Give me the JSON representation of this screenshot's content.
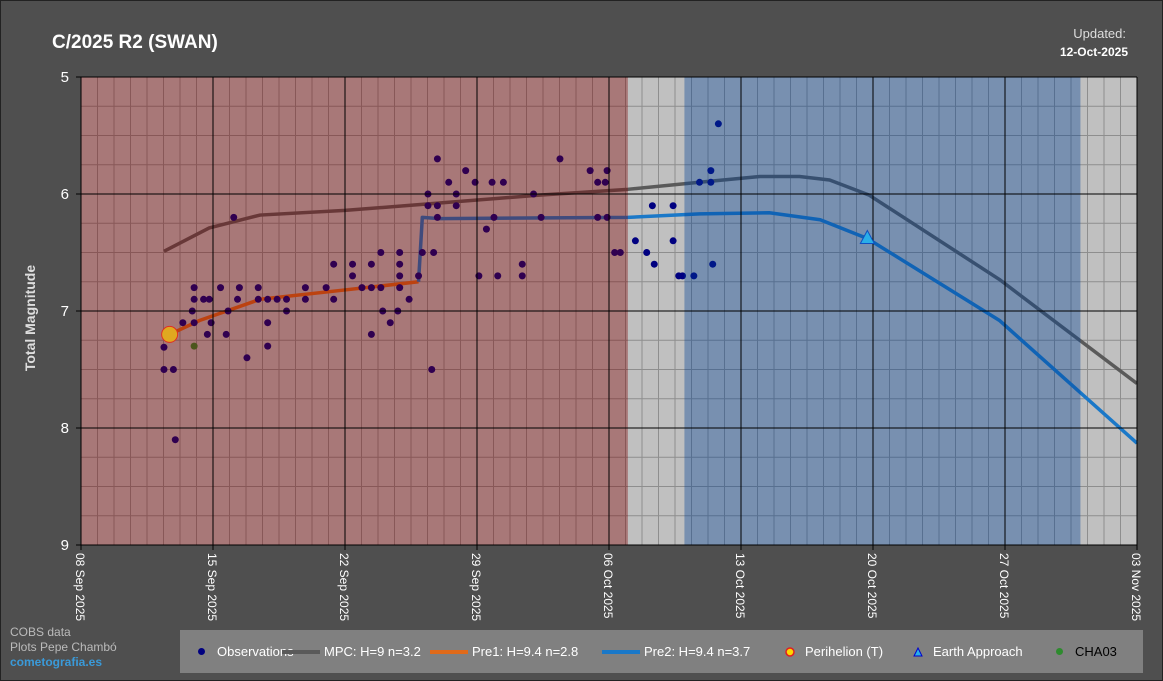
{
  "title": "C/2025 R2 (SWAN)",
  "updated_label": "Updated:",
  "updated_date": "12-Oct-2025",
  "credits": {
    "line1": "COBS data",
    "line2": "Plots Pepe Chambó",
    "site": "cometografia.es"
  },
  "legend": [
    {
      "label": "Observations",
      "color": "#000080"
    },
    {
      "label": "MPC: H=9 n=3.2",
      "color": "#5a5a5a"
    },
    {
      "label": "Pre1: H=9.4 n=2.8",
      "color": "#e06a1a"
    },
    {
      "label": "Pre2: H=9.4 n=3.7",
      "color": "#1a78c8"
    },
    {
      "label": "Perihelion (T)",
      "color": "#ffd700"
    },
    {
      "label": "Earth Approach",
      "color": "#29aee8"
    },
    {
      "label": "CHA03",
      "color": "#2e8b2e"
    }
  ],
  "chart_data": {
    "type": "scatter",
    "title": "C/2025 R2 (SWAN)",
    "ylabel": "Total Magnitude",
    "xlabel": "",
    "x_units": "days since 08 Sep 2025",
    "xlim": [
      0,
      56
    ],
    "ylim": [
      9,
      5
    ],
    "y_inverted": true,
    "grid": true,
    "legend_position": "bottom",
    "x_ticks": [
      {
        "day": 0,
        "label": "08 Sep 2025"
      },
      {
        "day": 7,
        "label": "15 Sep 2025"
      },
      {
        "day": 14,
        "label": "22 Sep 2025"
      },
      {
        "day": 21,
        "label": "29 Sep 2025"
      },
      {
        "day": 28,
        "label": "06 Oct 2025"
      },
      {
        "day": 35,
        "label": "13 Oct 2025"
      },
      {
        "day": 42,
        "label": "20 Oct 2025"
      },
      {
        "day": 49,
        "label": "27 Oct 2025"
      },
      {
        "day": 56,
        "label": "03 Nov 2025"
      }
    ],
    "y_ticks": [
      "5",
      "6",
      "7",
      "8",
      "9"
    ],
    "y_tick_values": [
      5,
      6,
      7,
      8,
      9
    ],
    "regions": [
      {
        "from": 0,
        "to": 29,
        "color": "rgba(128,0,0,0.375)"
      },
      {
        "from": 32,
        "to": 53,
        "color": "rgba(0,64,149,0.375)"
      }
    ],
    "series": [
      {
        "name": "MPC: H=9 n=3.2",
        "kind": "line",
        "color": "#5a5a5a",
        "x": [
          4.4,
          6.8,
          9.5,
          14,
          18,
          24.3,
          29,
          32.8,
          36,
          38.1,
          39.7,
          41.8,
          48.7,
          56
        ],
        "y": [
          6.49,
          6.29,
          6.18,
          6.14,
          6.09,
          6.01,
          5.96,
          5.9,
          5.85,
          5.85,
          5.88,
          6.01,
          6.73,
          7.62
        ]
      },
      {
        "name": "Pre1: H=9.4 n=2.8",
        "kind": "line",
        "color": "#e06a1a",
        "x": [
          4.7,
          6.3,
          9.5,
          14,
          17.9
        ],
        "y": [
          7.2,
          7.08,
          6.9,
          6.82,
          6.75
        ]
      },
      {
        "name": "Pre2: H=9.4 n=3.7",
        "kind": "line",
        "color": "#1a78c8",
        "x": [
          17.9,
          18.1,
          19,
          29,
          32.8,
          36.5,
          39.2,
          41.7,
          48.7,
          56
        ],
        "y": [
          6.75,
          6.2,
          6.21,
          6.2,
          6.17,
          6.16,
          6.22,
          6.38,
          7.08,
          8.13
        ]
      },
      {
        "name": "Observations",
        "kind": "scatter",
        "color": "#000080",
        "x": [
          4.4,
          4.4,
          4.9,
          5.0,
          5.4,
          6.0,
          6.0,
          5.9,
          6.0,
          6.5,
          6.7,
          6.8,
          6.9,
          7.4,
          7.8,
          7.7,
          8.1,
          8.3,
          8.4,
          8.8,
          9.4,
          9.4,
          9.9,
          9.9,
          9.9,
          10.4,
          10.9,
          10.9,
          11.9,
          11.9,
          13.0,
          13.4,
          13.4,
          14.4,
          14.4,
          14.9,
          15.4,
          15.4,
          15.4,
          15.9,
          15.9,
          16.0,
          16.4,
          16.8,
          16.9,
          16.9,
          16.9,
          16.9,
          17.4,
          17.9,
          18.1,
          18.4,
          18.4,
          18.6,
          18.7,
          18.9,
          18.9,
          18.9,
          19.5,
          19.9,
          19.9,
          20.4,
          20.9,
          21.1,
          21.5,
          21.8,
          21.9,
          22.1,
          22.4,
          23.4,
          23.4,
          24.0,
          24.4,
          25.4,
          27.0,
          27.4,
          27.4,
          27.8,
          27.9,
          27.9,
          28.3,
          28.6,
          29.4,
          30.0,
          30.4,
          30.3,
          31.4,
          31.4,
          31.7,
          31.9,
          32.5,
          32.8,
          33.4,
          33.4,
          33.5,
          33.8
        ],
        "y": [
          7.31,
          7.5,
          7.5,
          8.1,
          7.1,
          6.8,
          6.9,
          7.0,
          7.1,
          6.9,
          7.2,
          6.9,
          7.1,
          6.8,
          7.0,
          7.2,
          6.2,
          6.9,
          6.8,
          7.4,
          6.8,
          6.9,
          6.9,
          7.1,
          7.3,
          6.9,
          6.9,
          7.0,
          6.8,
          6.9,
          6.8,
          6.6,
          6.9,
          6.6,
          6.7,
          6.8,
          6.6,
          7.2,
          6.8,
          6.5,
          6.8,
          7.0,
          7.1,
          7.0,
          6.6,
          6.8,
          6.5,
          6.7,
          6.9,
          6.7,
          6.5,
          6.0,
          6.1,
          7.5,
          6.5,
          6.2,
          6.1,
          5.7,
          5.9,
          6.1,
          6.0,
          5.8,
          5.9,
          6.7,
          6.3,
          5.9,
          6.2,
          6.7,
          5.9,
          6.6,
          6.7,
          6.0,
          6.2,
          5.7,
          5.8,
          5.9,
          6.2,
          5.9,
          6.2,
          5.8,
          6.5,
          6.5,
          6.4,
          6.5,
          6.6,
          6.1,
          6.1,
          6.4,
          6.7,
          6.7,
          6.7,
          5.9,
          5.8,
          5.9,
          6.6,
          5.4
        ]
      },
      {
        "name": "CHA03",
        "kind": "scatter",
        "color": "#2e8b2e",
        "x": [
          6.0
        ],
        "y": [
          7.3
        ]
      },
      {
        "name": "Perihelion (T)",
        "kind": "marker",
        "color": "#e0a820",
        "x": [
          4.7
        ],
        "y": [
          7.2
        ]
      },
      {
        "name": "Earth Approach",
        "kind": "marker",
        "color": "#29aee8",
        "x": [
          41.7
        ],
        "y": [
          6.38
        ]
      }
    ]
  }
}
